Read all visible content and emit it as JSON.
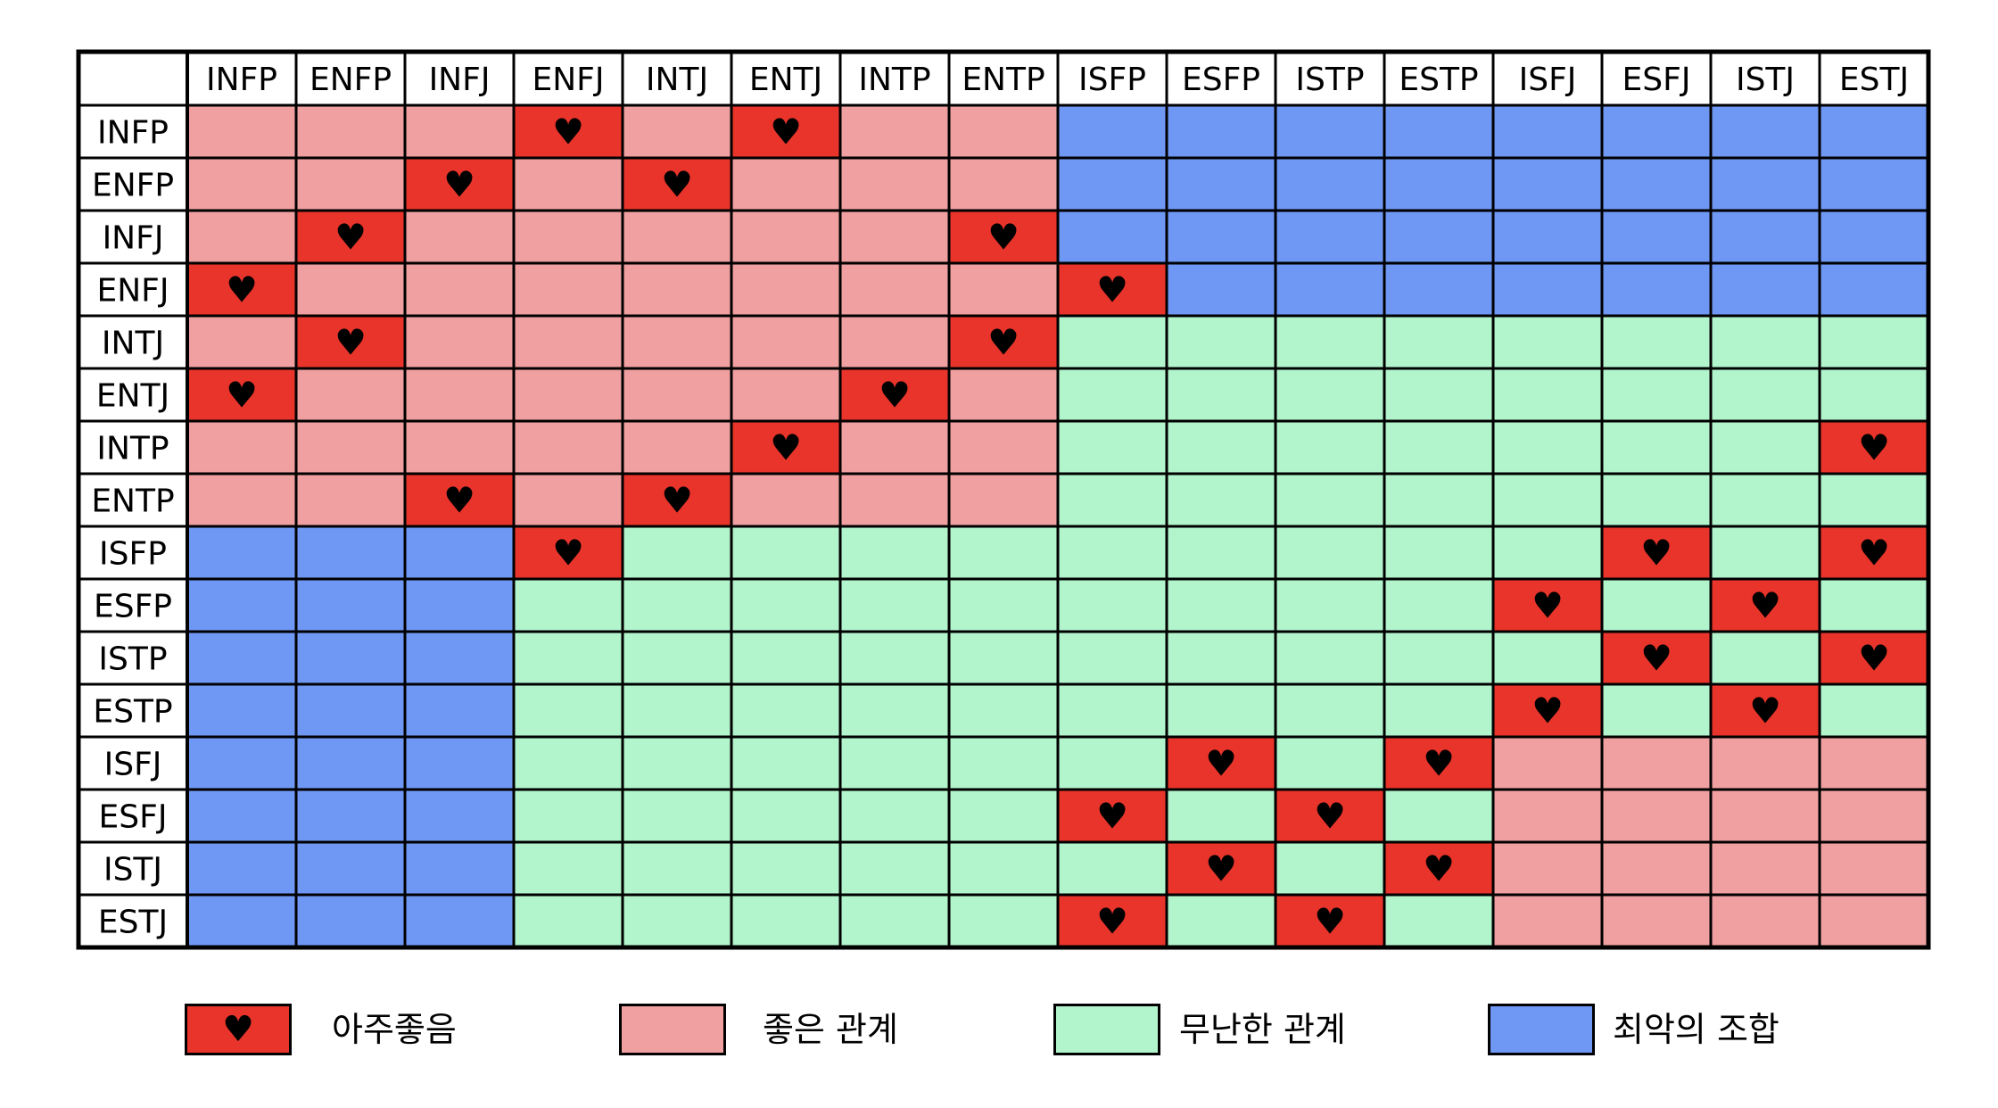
{
  "chart_data": {
    "type": "heatmap",
    "title": "",
    "columns": [
      "INFP",
      "ENFP",
      "INFJ",
      "ENFJ",
      "INTJ",
      "ENTJ",
      "INTP",
      "ENTP",
      "ISFP",
      "ESFP",
      "ISTP",
      "ESTP",
      "ISFJ",
      "ESFJ",
      "ISTJ",
      "ESTJ"
    ],
    "rows": [
      "INFP",
      "ENFP",
      "INFJ",
      "ENFJ",
      "INTJ",
      "ENTJ",
      "INTP",
      "ENTP",
      "ISFP",
      "ESFP",
      "ISTP",
      "ESTP",
      "ISFJ",
      "ESFJ",
      "ISTJ",
      "ESTJ"
    ],
    "category_codes": {
      "H": "very_good",
      "P": "good",
      "G": "neutral",
      "B": "worst"
    },
    "grid": [
      "PPPHPHPPBBBBBBBB",
      "PPHPHPPPBBBBBBBB",
      "PHPPPPPHBBBBBBBB",
      "HPPPPPPPHBBBBBBB",
      "PHPPPPPHGGGGGGGG",
      "HPPPPPHPGGGGGGGG",
      "PPPPPHPPGGGGGGGH",
      "PPHPHPPPGGGGGGGG",
      "BBBHGGGGGGGGGHGH",
      "BBBGGGGGGGGGHGHG",
      "BBBGGGGGGGGGGHGH",
      "BBBGGGGGGGGGHGHG",
      "BBBGGGGGGHGHPPPP",
      "BBBGGGGGHGHGPPPP",
      "BBBGGGGGGHGHPPPP",
      "BBBGGGGGHGHGPPPP"
    ],
    "legend": [
      {
        "key": "very_good",
        "code": "H",
        "label": "아주좋음",
        "color": "#e8342a",
        "heart": true
      },
      {
        "key": "good",
        "code": "P",
        "label": "좋은 관계",
        "color": "#f0a0a0",
        "heart": false
      },
      {
        "key": "neutral",
        "code": "G",
        "label": "무난한 관계",
        "color": "#b2f5cd",
        "heart": false
      },
      {
        "key": "worst",
        "code": "B",
        "label": "최악의 조합",
        "color": "#6f98f5",
        "heart": false
      }
    ],
    "heart_glyph": "♥",
    "gridlines": true
  }
}
